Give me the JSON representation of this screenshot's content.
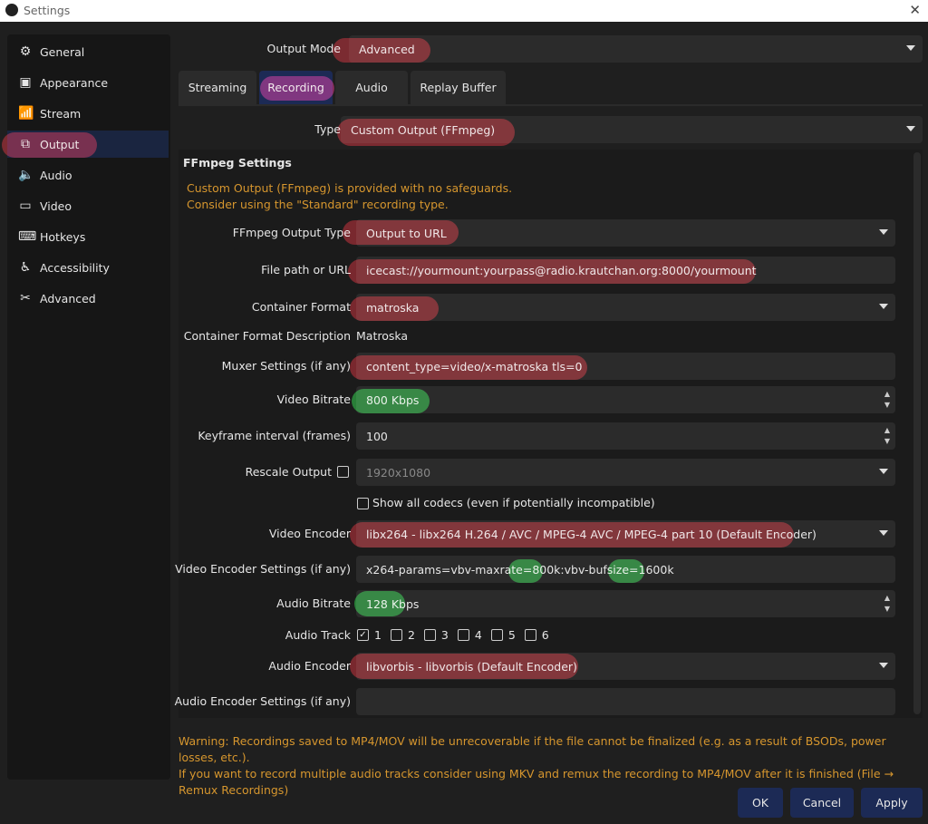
{
  "window": {
    "title": "Settings",
    "close": "✕"
  },
  "sidebar": {
    "items": [
      {
        "label": "General",
        "icon": "gear-icon",
        "glyph": "⚙"
      },
      {
        "label": "Appearance",
        "icon": "appearance-icon",
        "glyph": "▣"
      },
      {
        "label": "Stream",
        "icon": "antenna-icon",
        "glyph": "📶"
      },
      {
        "label": "Output",
        "icon": "output-icon",
        "glyph": "⧉",
        "selected": true
      },
      {
        "label": "Audio",
        "icon": "speaker-icon",
        "glyph": "🔈"
      },
      {
        "label": "Video",
        "icon": "monitor-icon",
        "glyph": "▭"
      },
      {
        "label": "Hotkeys",
        "icon": "keyboard-icon",
        "glyph": "⌨"
      },
      {
        "label": "Accessibility",
        "icon": "accessibility-icon",
        "glyph": "♿"
      },
      {
        "label": "Advanced",
        "icon": "tools-icon",
        "glyph": "✂"
      }
    ]
  },
  "output_mode": {
    "label": "Output Mode",
    "value": "Advanced"
  },
  "tabs": [
    {
      "label": "Streaming"
    },
    {
      "label": "Recording",
      "selected": true
    },
    {
      "label": "Audio"
    },
    {
      "label": "Replay Buffer"
    }
  ],
  "type": {
    "label": "Type",
    "value": "Custom Output (FFmpeg)"
  },
  "ffmpeg": {
    "header": "FFmpeg Settings",
    "notice1": "Custom Output (FFmpeg) is provided with no safeguards.",
    "notice2": "Consider using the \"Standard\" recording type.",
    "output_type": {
      "label": "FFmpeg Output Type",
      "value": "Output to URL"
    },
    "file_path": {
      "label": "File path or URL",
      "value": "icecast://yourmount:yourpass@radio.krautchan.org:8000/yourmount"
    },
    "container_format": {
      "label": "Container Format",
      "value": "matroska"
    },
    "container_desc": {
      "label": "Container Format Description",
      "value": "Matroska"
    },
    "muxer": {
      "label": "Muxer Settings (if any)",
      "value": "content_type=video/x-matroska tls=0"
    },
    "video_bitrate": {
      "label": "Video Bitrate",
      "value": "800 Kbps"
    },
    "keyframe": {
      "label": "Keyframe interval (frames)",
      "value": "100"
    },
    "rescale": {
      "label": "Rescale Output",
      "checked": false,
      "value": "1920x1080"
    },
    "show_all_codecs": {
      "label": "Show all codecs (even if potentially incompatible)",
      "checked": false
    },
    "video_encoder": {
      "label": "Video Encoder",
      "value": "libx264 - libx264 H.264 / AVC / MPEG-4 AVC / MPEG-4 part 10 (Default Encoder)"
    },
    "video_encoder_settings": {
      "label": "Video Encoder Settings (if any)",
      "value": "x264-params=vbv-maxrate=800k:vbv-bufsize=1600k"
    },
    "audio_bitrate": {
      "label": "Audio Bitrate",
      "value": "128 Kbps"
    },
    "audio_track": {
      "label": "Audio Track",
      "tracks": [
        {
          "n": "1",
          "checked": true
        },
        {
          "n": "2",
          "checked": false
        },
        {
          "n": "3",
          "checked": false
        },
        {
          "n": "4",
          "checked": false
        },
        {
          "n": "5",
          "checked": false
        },
        {
          "n": "6",
          "checked": false
        }
      ]
    },
    "audio_encoder": {
      "label": "Audio Encoder",
      "value": "libvorbis - libvorbis (Default Encoder)"
    },
    "audio_encoder_settings": {
      "label": "Audio Encoder Settings (if any)",
      "value": ""
    }
  },
  "warning": {
    "line1": "Warning: Recordings saved to MP4/MOV will be unrecoverable if the file cannot be finalized (e.g. as a result of BSODs, power losses, etc.).",
    "line2": "If you want to record multiple audio tracks consider using MKV and remux the recording to MP4/MOV after it is finished (File → Remux Recordings)"
  },
  "buttons": {
    "ok": "OK",
    "cancel": "Cancel",
    "apply": "Apply"
  },
  "colors": {
    "accent": "#1c2a55",
    "warning": "#d6962e",
    "highlight_red": "#961420",
    "highlight_green": "#148c28"
  }
}
